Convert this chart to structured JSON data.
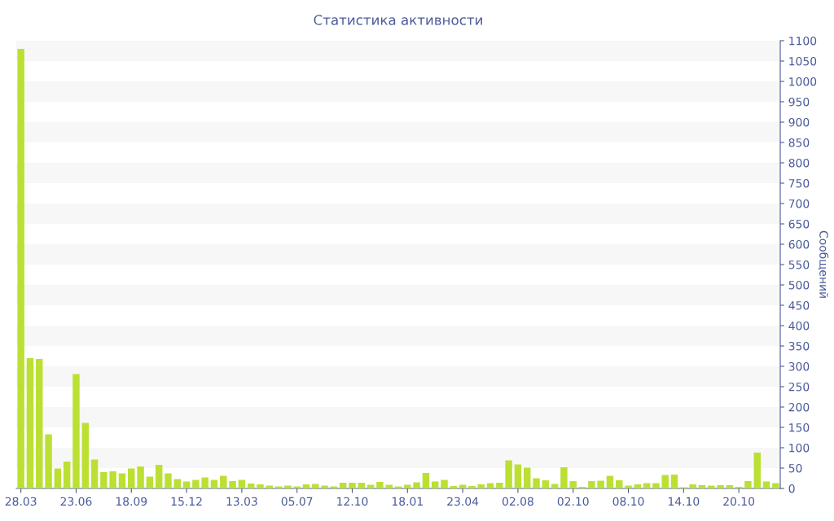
{
  "chart_data": {
    "type": "bar",
    "title": "Статистика активности",
    "ylabel": "Сообщений",
    "categories": [
      "28.03",
      null,
      null,
      null,
      null,
      null,
      "23.06",
      null,
      null,
      null,
      null,
      null,
      "18.09",
      null,
      null,
      null,
      null,
      null,
      "15.12",
      null,
      null,
      null,
      null,
      null,
      "13.03",
      null,
      null,
      null,
      null,
      null,
      "05.07",
      null,
      null,
      null,
      null,
      null,
      "12.10",
      null,
      null,
      null,
      null,
      null,
      "18.01",
      null,
      null,
      null,
      null,
      null,
      "23.04",
      null,
      null,
      null,
      null,
      null,
      "02.08",
      null,
      null,
      null,
      null,
      null,
      "02.10",
      null,
      null,
      null,
      null,
      null,
      "08.10",
      null,
      null,
      null,
      null,
      null,
      "14.10",
      null,
      null,
      null,
      null,
      null,
      "20.10",
      null,
      null,
      null,
      null
    ],
    "values": [
      1080,
      320,
      318,
      133,
      49,
      66,
      281,
      161,
      71,
      40,
      42,
      37,
      49,
      54,
      29,
      58,
      37,
      23,
      17,
      21,
      27,
      21,
      31,
      18,
      21,
      12,
      10,
      7,
      5,
      7,
      5,
      10,
      11,
      7,
      5,
      14,
      14,
      14,
      9,
      16,
      9,
      5,
      9,
      15,
      38,
      17,
      21,
      6,
      9,
      6,
      10,
      13,
      14,
      69,
      59,
      51,
      25,
      20,
      11,
      52,
      18,
      4,
      18,
      19,
      31,
      20,
      7,
      10,
      13,
      13,
      33,
      34,
      3,
      10,
      8,
      7,
      8,
      8,
      4,
      18,
      88,
      17,
      13
    ],
    "color": "#bbe033",
    "ylim": [
      0,
      1100
    ],
    "yticks": [
      0,
      50,
      100,
      150,
      200,
      250,
      300,
      350,
      400,
      450,
      500,
      550,
      600,
      650,
      700,
      750,
      800,
      850,
      900,
      950,
      1000,
      1050,
      1100
    ],
    "bands": [
      {
        "axis": "y",
        "from": 50,
        "to": 100,
        "color": "#f7f7f7"
      },
      {
        "axis": "y",
        "from": 150,
        "to": 200,
        "color": "#f7f7f7"
      },
      {
        "axis": "y",
        "from": 250,
        "to": 300,
        "color": "#f7f7f7"
      },
      {
        "axis": "y",
        "from": 350,
        "to": 400,
        "color": "#f7f7f7"
      },
      {
        "axis": "y",
        "from": 450,
        "to": 500,
        "color": "#f7f7f7"
      },
      {
        "axis": "y",
        "from": 550,
        "to": 600,
        "color": "#f7f7f7"
      },
      {
        "axis": "y",
        "from": 650,
        "to": 700,
        "color": "#f7f7f7"
      },
      {
        "axis": "y",
        "from": 750,
        "to": 800,
        "color": "#f7f7f7"
      },
      {
        "axis": "y",
        "from": 850,
        "to": 900,
        "color": "#f7f7f7"
      },
      {
        "axis": "y",
        "from": 950,
        "to": 1000,
        "color": "#f7f7f7"
      },
      {
        "axis": "y",
        "from": 1050,
        "to": 1100,
        "color": "#f7f7f7"
      }
    ]
  }
}
